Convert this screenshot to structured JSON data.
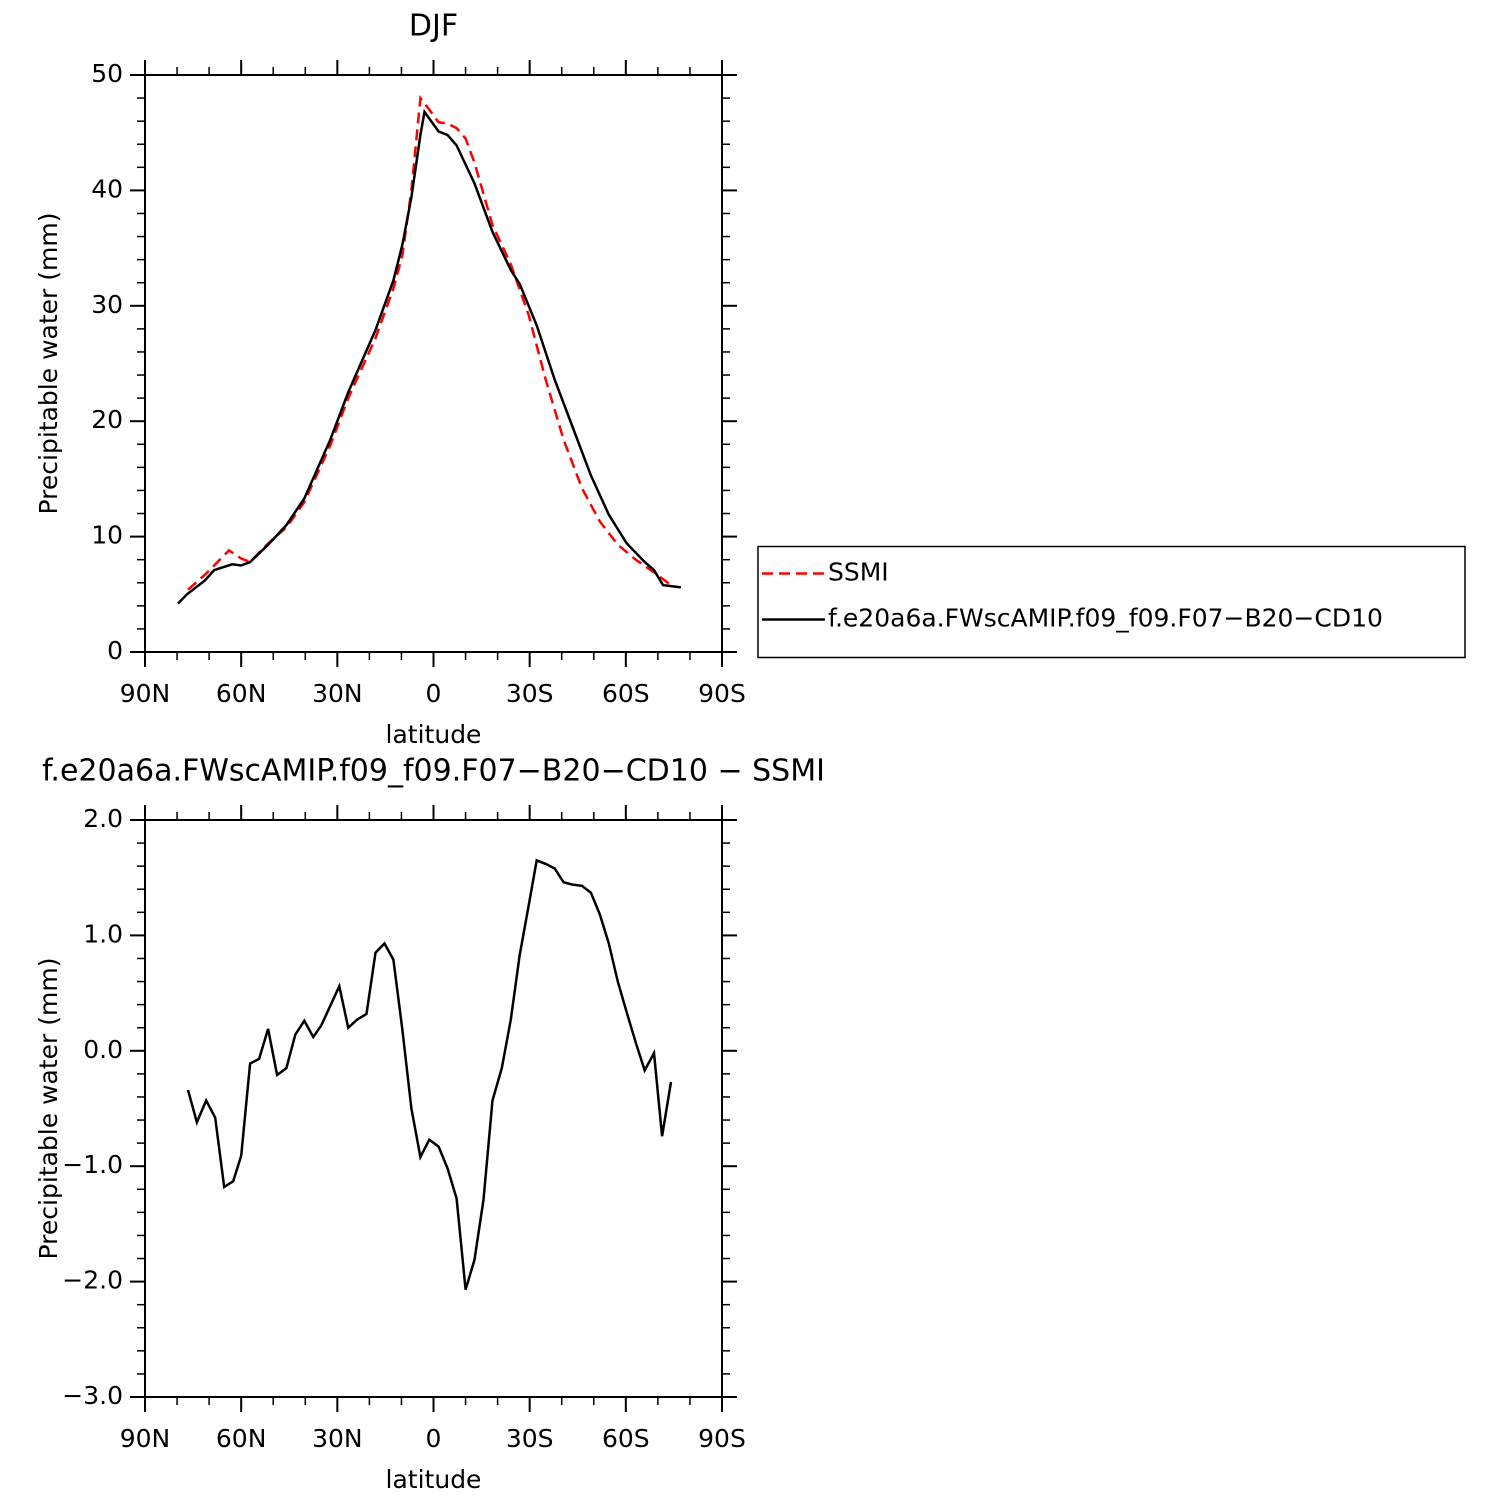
{
  "chart_data": [
    {
      "type": "line",
      "title": "DJF",
      "xlabel": "latitude",
      "ylabel": "Precipitable water (mm)",
      "xlim": [
        90,
        -90
      ],
      "xticks": [
        {
          "value": 90,
          "label": "90N"
        },
        {
          "value": 60,
          "label": "60N"
        },
        {
          "value": 30,
          "label": "30N"
        },
        0,
        {
          "value": -30,
          "label": "30S"
        },
        {
          "value": -60,
          "label": "60S"
        },
        {
          "value": -90,
          "label": "90S"
        }
      ],
      "xminorticks": [
        80,
        70,
        50,
        40,
        20,
        10,
        -10,
        -20,
        -40,
        -50,
        -70,
        -80
      ],
      "ylim": [
        0,
        50
      ],
      "yticks": [
        0,
        10,
        20,
        30,
        40,
        50
      ],
      "yminorticks": [
        2,
        4,
        6,
        8,
        12,
        14,
        16,
        18,
        22,
        24,
        26,
        28,
        32,
        34,
        36,
        38,
        42,
        44,
        46,
        48
      ],
      "legend_position": "right",
      "series": [
        {
          "name": "SSMI",
          "color": "#ff0000",
          "line_style": "dashed",
          "x": [
            76.6,
            70.9,
            63.8,
            60.0,
            57.2,
            51.6,
            45.9,
            40.3,
            32.2,
            26.6,
            18.1,
            12.5,
            9.7,
            6.9,
            4.1,
            1.3,
            -1.6,
            -4.4,
            -7.2,
            -10.0,
            -12.8,
            -18.4,
            -24.1,
            -29.7,
            -35.0,
            -40.6,
            -46.3,
            -51.9,
            -57.5,
            -63.1,
            -68.8,
            -74.1
          ],
          "values": [
            5.4,
            6.8,
            8.8,
            8.1,
            7.8,
            9.4,
            10.8,
            13.0,
            17.9,
            22.0,
            27.2,
            31.5,
            34.4,
            40.0,
            48.0,
            47.0,
            45.9,
            45.8,
            45.4,
            44.5,
            42.4,
            37.0,
            33.6,
            29.2,
            23.6,
            18.4,
            14.2,
            11.3,
            9.3,
            8.0,
            6.9,
            5.8
          ]
        },
        {
          "name": "f.e20a6a.FWscAMIP.f09_f09.F07−B20−CD10",
          "color": "#000000",
          "line_style": "solid",
          "x": [
            79.7,
            76.9,
            71.3,
            68.4,
            62.8,
            60.0,
            57.2,
            51.6,
            45.9,
            40.3,
            32.2,
            26.6,
            18.1,
            12.5,
            9.7,
            6.9,
            4.1,
            2.8,
            -1.6,
            -4.4,
            -7.2,
            -12.8,
            -18.4,
            -24.1,
            -26.9,
            -32.2,
            -37.8,
            -43.4,
            -49.1,
            -54.7,
            -60.3,
            -65.9,
            -68.8,
            -71.6,
            -74.4,
            -77.2
          ],
          "values": [
            4.2,
            5.0,
            6.2,
            7.1,
            7.6,
            7.5,
            7.8,
            9.3,
            11.0,
            13.3,
            18.4,
            22.5,
            27.9,
            32.2,
            35.3,
            39.4,
            44.8,
            46.8,
            45.1,
            44.8,
            43.9,
            40.6,
            36.4,
            33.1,
            31.9,
            28.3,
            23.6,
            19.5,
            15.3,
            11.9,
            9.4,
            7.8,
            7.1,
            5.8,
            5.7,
            5.6
          ]
        }
      ]
    },
    {
      "type": "line",
      "title": "f.e20a6a.FWscAMIP.f09_f09.F07−B20−CD10 − SSMI",
      "xlabel": "latitude",
      "ylabel": "Precipitable water (mm)",
      "xlim": [
        90,
        -90
      ],
      "xticks": [
        {
          "value": 90,
          "label": "90N"
        },
        {
          "value": 60,
          "label": "60N"
        },
        {
          "value": 30,
          "label": "30N"
        },
        0,
        {
          "value": -30,
          "label": "30S"
        },
        {
          "value": -60,
          "label": "60S"
        },
        {
          "value": -90,
          "label": "90S"
        }
      ],
      "xminorticks": [
        80,
        70,
        50,
        40,
        20,
        10,
        -10,
        -20,
        -40,
        -50,
        -70,
        -80
      ],
      "ylim": [
        -3,
        2
      ],
      "yticks": [
        {
          "value": -3,
          "label": "−3.0"
        },
        {
          "value": -2,
          "label": "−2.0"
        },
        {
          "value": -1,
          "label": "−1.0"
        },
        {
          "value": 0,
          "label": "0.0"
        },
        {
          "value": 1,
          "label": "1.0"
        },
        {
          "value": 2,
          "label": "2.0"
        }
      ],
      "yminorticks": [
        -2.8,
        -2.6,
        -2.4,
        -2.2,
        -1.8,
        -1.6,
        -1.4,
        -1.2,
        -0.8,
        -0.6,
        -0.4,
        -0.2,
        0.2,
        0.4,
        0.6,
        0.8,
        1.2,
        1.4,
        1.6,
        1.8
      ],
      "series": [
        {
          "color": "#000000",
          "line_style": "solid",
          "x": [
            76.6,
            73.8,
            70.9,
            68.1,
            65.3,
            62.5,
            60.0,
            57.2,
            54.4,
            51.6,
            48.8,
            45.9,
            43.1,
            40.3,
            37.5,
            35.0,
            32.2,
            29.4,
            26.6,
            23.8,
            20.9,
            18.1,
            15.3,
            12.5,
            9.7,
            6.9,
            4.1,
            1.3,
            -1.6,
            -4.4,
            -7.2,
            -10.0,
            -12.8,
            -15.6,
            -18.4,
            -21.3,
            -24.1,
            -26.9,
            -29.7,
            -32.2,
            -35.0,
            -37.8,
            -40.6,
            -43.4,
            -46.3,
            -49.1,
            -51.9,
            -54.7,
            -57.5,
            -60.3,
            -63.1,
            -65.9,
            -68.8,
            -71.3,
            -74.1
          ],
          "values": [
            -0.34,
            -0.62,
            -0.43,
            -0.58,
            -1.18,
            -1.13,
            -0.91,
            -0.11,
            -0.07,
            0.19,
            -0.21,
            -0.15,
            0.14,
            0.26,
            0.12,
            0.22,
            0.39,
            0.56,
            0.2,
            0.27,
            0.32,
            0.85,
            0.93,
            0.79,
            0.18,
            -0.5,
            -0.92,
            -0.77,
            -0.83,
            -1.02,
            -1.28,
            -2.07,
            -1.81,
            -1.29,
            -0.43,
            -0.15,
            0.27,
            0.83,
            1.26,
            1.65,
            1.62,
            1.58,
            1.46,
            1.44,
            1.43,
            1.37,
            1.18,
            0.93,
            0.6,
            0.33,
            0.07,
            -0.17,
            -0.02,
            -0.74,
            -0.27
          ]
        }
      ]
    }
  ]
}
